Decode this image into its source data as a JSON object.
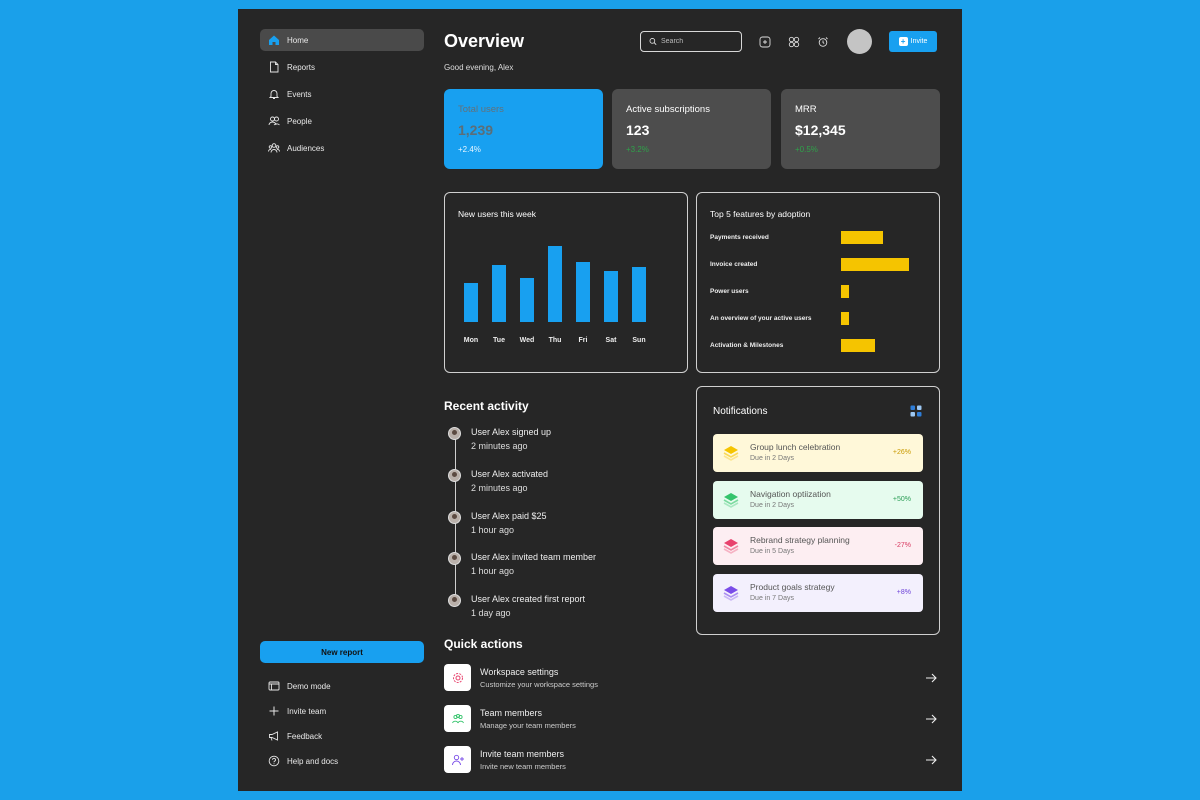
{
  "sidebar": {
    "items": [
      {
        "label": "Home",
        "icon": "home-icon",
        "active": true
      },
      {
        "label": "Reports",
        "icon": "document-icon"
      },
      {
        "label": "Events",
        "icon": "bell-icon"
      },
      {
        "label": "People",
        "icon": "people-icon"
      },
      {
        "label": "Audiences",
        "icon": "audiences-icon"
      }
    ],
    "new_report_label": "New report",
    "bottom_items": [
      {
        "label": "Demo mode",
        "icon": "window-icon"
      },
      {
        "label": "Invite team",
        "icon": "plus-icon"
      },
      {
        "label": "Feedback",
        "icon": "megaphone-icon"
      },
      {
        "label": "Help and docs",
        "icon": "help-icon"
      }
    ]
  },
  "header": {
    "title": "Overview",
    "greeting": "Good evening, Alex",
    "search_placeholder": "Search",
    "invite_label": "Invite"
  },
  "stats": [
    {
      "label": "Total users",
      "value": "1,239",
      "delta": "+2.4%",
      "bg": "#18a0f0",
      "label_color": "#63717a",
      "value_color": "#5b6e78",
      "delta_color": "#e8f6ff"
    },
    {
      "label": "Active subscriptions",
      "value": "123",
      "delta": "+3.2%",
      "bg": "#4d4d4d",
      "label_color": "#ffffff",
      "value_color": "#ffffff",
      "delta_color": "#2fa24a"
    },
    {
      "label": "MRR",
      "value": "$12,345",
      "delta": "+0.5%",
      "bg": "#4d4d4d",
      "label_color": "#ffffff",
      "value_color": "#ffffff",
      "delta_color": "#2fa24a"
    }
  ],
  "new_users_chart": {
    "title": "New users this week",
    "chart_data": {
      "type": "bar",
      "title": "New users this week",
      "categories": [
        "Mon",
        "Tue",
        "Wed",
        "Thu",
        "Fri",
        "Sat",
        "Sun"
      ],
      "values": [
        40,
        58,
        45,
        78,
        62,
        52,
        56
      ],
      "ylim": [
        0,
        80
      ],
      "color": "#18a0f0"
    }
  },
  "features_chart": {
    "title": "Top 5 features by adoption",
    "chart_data": {
      "type": "bar",
      "orientation": "horizontal",
      "title": "Top 5 features by adoption",
      "categories": [
        "Payments received",
        "Invoice created",
        "Power users",
        "An overview of your active users",
        "Activation & Milestones"
      ],
      "values": [
        62,
        100,
        12,
        12,
        50
      ],
      "xlim": [
        0,
        100
      ],
      "color": "#f5c400"
    }
  },
  "recent_activity": {
    "title": "Recent activity",
    "items": [
      {
        "title": "User Alex signed up",
        "time": "2 minutes ago"
      },
      {
        "title": "User Alex activated",
        "time": "2 minutes ago"
      },
      {
        "title": "User Alex paid $25",
        "time": "1 hour ago"
      },
      {
        "title": "User Alex invited team member",
        "time": "1 hour ago"
      },
      {
        "title": "User Alex created first report",
        "time": "1 day ago"
      }
    ]
  },
  "notifications": {
    "title": "Notifications",
    "items": [
      {
        "title": "Group lunch celebration",
        "due": "Due in 2 Days",
        "pct": "+26%",
        "bg": "#fff8d9",
        "accent": "#f5c400",
        "pct_color": "#c99a00"
      },
      {
        "title": "Navigation optiization",
        "due": "Due in 2 Days",
        "pct": "+50%",
        "bg": "#e6fbee",
        "accent": "#35c46c",
        "pct_color": "#2a9d55"
      },
      {
        "title": "Rebrand strategy planning",
        "due": "Due in 5 Days",
        "pct": "-27%",
        "bg": "#fdeef2",
        "accent": "#e8436e",
        "pct_color": "#d93a61"
      },
      {
        "title": "Product goals strategy",
        "due": "Due in 7 Days",
        "pct": "+8%",
        "bg": "#f3f0fd",
        "accent": "#7a4de8",
        "pct_color": "#6b40d8"
      }
    ]
  },
  "quick_actions": {
    "title": "Quick actions",
    "items": [
      {
        "title": "Workspace settings",
        "subtitle": "Customize your workspace settings",
        "icon": "gear-icon",
        "color": "#e8436e"
      },
      {
        "title": "Team members",
        "subtitle": "Manage your team members",
        "icon": "team-icon",
        "color": "#35c46c"
      },
      {
        "title": "Invite team members",
        "subtitle": "Invite new team members",
        "icon": "add-user-icon",
        "color": "#7a4de8"
      }
    ]
  }
}
